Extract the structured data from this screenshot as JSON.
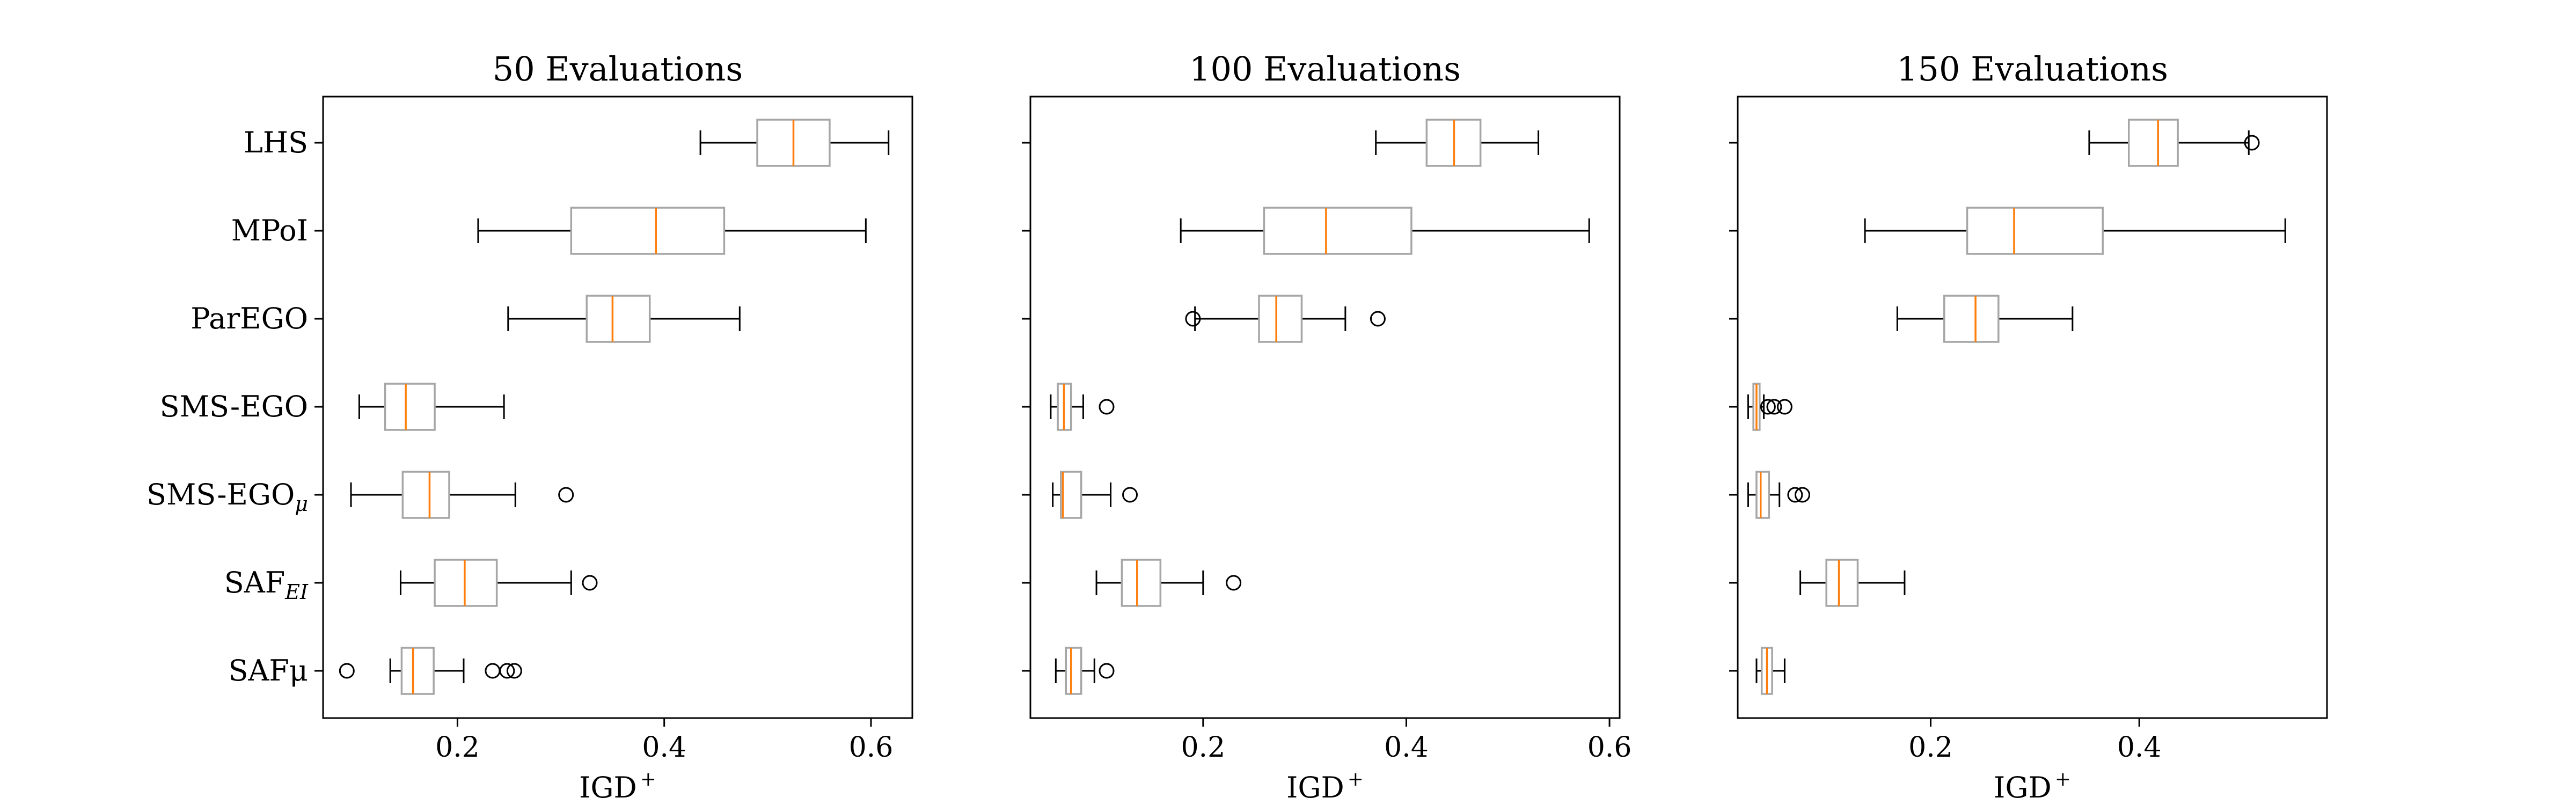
{
  "chart_data": {
    "type": "boxplot",
    "xlabel": "IGD",
    "xlabel_superscript": "+",
    "categories": [
      {
        "label": "LHS",
        "sub": ""
      },
      {
        "label": "MPoI",
        "sub": ""
      },
      {
        "label": "ParEGO",
        "sub": ""
      },
      {
        "label": "SMS-EGO",
        "sub": ""
      },
      {
        "label": "SMS-EGO",
        "sub": "μ"
      },
      {
        "label": "SAF",
        "sub": "EI"
      },
      {
        "label": "SAFμ",
        "sub": ""
      }
    ],
    "colors": {
      "box": "#a6a6a6",
      "median": "#ff7f0e",
      "whisker": "#000000",
      "axis": "#000000"
    },
    "panels": [
      {
        "title": "50 Evaluations",
        "xlim": [
          0.07,
          0.64
        ],
        "xticks": [
          0.2,
          0.4,
          0.6
        ],
        "tick_labels": [
          "0.2",
          "0.4",
          "0.6"
        ],
        "boxes": [
          {
            "whislo": 0.435,
            "q1": 0.49,
            "med": 0.525,
            "q3": 0.56,
            "whishi": 0.617,
            "fliers": []
          },
          {
            "whislo": 0.22,
            "q1": 0.31,
            "med": 0.392,
            "q3": 0.458,
            "whishi": 0.595,
            "fliers": []
          },
          {
            "whislo": 0.249,
            "q1": 0.325,
            "med": 0.35,
            "q3": 0.386,
            "whishi": 0.473,
            "fliers": []
          },
          {
            "whislo": 0.105,
            "q1": 0.13,
            "med": 0.15,
            "q3": 0.178,
            "whishi": 0.245,
            "fliers": []
          },
          {
            "whislo": 0.097,
            "q1": 0.147,
            "med": 0.173,
            "q3": 0.192,
            "whishi": 0.256,
            "fliers": [
              0.305
            ]
          },
          {
            "whislo": 0.145,
            "q1": 0.178,
            "med": 0.207,
            "q3": 0.238,
            "whishi": 0.31,
            "fliers": [
              0.328
            ]
          },
          {
            "whislo": 0.135,
            "q1": 0.146,
            "med": 0.157,
            "q3": 0.177,
            "whishi": 0.206,
            "fliers": [
              0.093,
              0.234,
              0.248,
              0.255
            ]
          }
        ]
      },
      {
        "title": "100 Evaluations",
        "xlim": [
          0.03,
          0.61
        ],
        "xticks": [
          0.2,
          0.4,
          0.6
        ],
        "tick_labels": [
          "0.2",
          "0.4",
          "0.6"
        ],
        "boxes": [
          {
            "whislo": 0.37,
            "q1": 0.42,
            "med": 0.447,
            "q3": 0.473,
            "whishi": 0.53,
            "fliers": []
          },
          {
            "whislo": 0.178,
            "q1": 0.26,
            "med": 0.321,
            "q3": 0.405,
            "whishi": 0.58,
            "fliers": []
          },
          {
            "whislo": 0.192,
            "q1": 0.255,
            "med": 0.272,
            "q3": 0.297,
            "whishi": 0.34,
            "fliers": [
              0.19,
              0.372
            ]
          },
          {
            "whislo": 0.05,
            "q1": 0.057,
            "med": 0.063,
            "q3": 0.07,
            "whishi": 0.082,
            "fliers": [
              0.105
            ]
          },
          {
            "whislo": 0.052,
            "q1": 0.06,
            "med": 0.062,
            "q3": 0.08,
            "whishi": 0.109,
            "fliers": [
              0.128
            ]
          },
          {
            "whislo": 0.095,
            "q1": 0.12,
            "med": 0.135,
            "q3": 0.158,
            "whishi": 0.2,
            "fliers": [
              0.23
            ]
          },
          {
            "whislo": 0.055,
            "q1": 0.065,
            "med": 0.07,
            "q3": 0.08,
            "whishi": 0.093,
            "fliers": [
              0.105
            ]
          }
        ]
      },
      {
        "title": "150 Evaluations",
        "xlim": [
          0.015,
          0.58
        ],
        "xticks": [
          0.2,
          0.4
        ],
        "tick_labels": [
          "0.2",
          "0.4"
        ],
        "boxes": [
          {
            "whislo": 0.352,
            "q1": 0.39,
            "med": 0.418,
            "q3": 0.437,
            "whishi": 0.505,
            "fliers": [
              0.508
            ]
          },
          {
            "whislo": 0.137,
            "q1": 0.235,
            "med": 0.28,
            "q3": 0.365,
            "whishi": 0.54,
            "fliers": []
          },
          {
            "whislo": 0.168,
            "q1": 0.213,
            "med": 0.243,
            "q3": 0.265,
            "whishi": 0.336,
            "fliers": []
          },
          {
            "whislo": 0.025,
            "q1": 0.03,
            "med": 0.033,
            "q3": 0.036,
            "whishi": 0.04,
            "fliers": [
              0.044,
              0.05,
              0.06
            ]
          },
          {
            "whislo": 0.025,
            "q1": 0.033,
            "med": 0.037,
            "q3": 0.045,
            "whishi": 0.055,
            "fliers": [
              0.07,
              0.077
            ]
          },
          {
            "whislo": 0.075,
            "q1": 0.1,
            "med": 0.112,
            "q3": 0.13,
            "whishi": 0.175,
            "fliers": []
          },
          {
            "whislo": 0.033,
            "q1": 0.038,
            "med": 0.043,
            "q3": 0.048,
            "whishi": 0.06,
            "fliers": []
          }
        ]
      }
    ]
  }
}
